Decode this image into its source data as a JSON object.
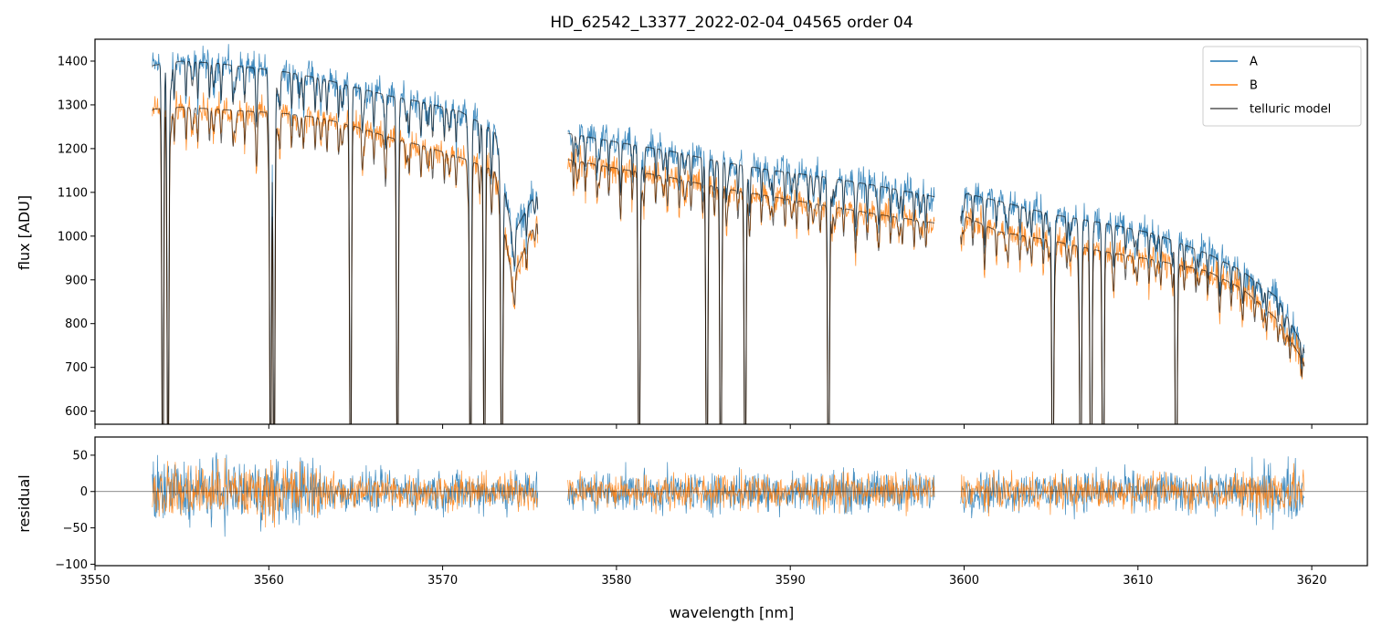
{
  "chart_data": [
    {
      "type": "line",
      "title": "HD_62542_L3377_2022-02-04_04565  order 04",
      "xlabel": "",
      "ylabel": "flux [ADU]",
      "xlim": [
        3550.0,
        3623.2
      ],
      "ylim": [
        570,
        1450
      ],
      "y_ticks": [
        600,
        700,
        800,
        900,
        1000,
        1100,
        1200,
        1300,
        1400
      ],
      "x_ticks": [
        3550,
        3560,
        3570,
        3580,
        3590,
        3600,
        3610,
        3620
      ],
      "legend_position": "upper right",
      "legend": [
        "A",
        "B",
        "telluric model"
      ],
      "segments": [
        [
          3553.3,
          3575.5
        ],
        [
          3577.2,
          3598.3
        ],
        [
          3599.8,
          3619.6
        ]
      ],
      "series": [
        {
          "name": "A",
          "color": "#1f77b4",
          "x": [
            3553.3,
            3555,
            3557,
            3559,
            3561,
            3563,
            3565,
            3567,
            3569,
            3571,
            3573,
            3574,
            3575.5,
            3577.2,
            3580,
            3583,
            3586,
            3589,
            3592,
            3595,
            3598.3,
            3599.8,
            3602,
            3605,
            3608,
            3611,
            3614,
            3616,
            3618,
            3619.6
          ],
          "y": [
            1390,
            1400,
            1395,
            1385,
            1375,
            1360,
            1340,
            1320,
            1305,
            1285,
            1240,
            1000,
            1110,
            1235,
            1215,
            1195,
            1170,
            1150,
            1135,
            1115,
            1090,
            1100,
            1080,
            1050,
            1030,
            1005,
            960,
            920,
            860,
            740
          ]
        },
        {
          "name": "B",
          "color": "#ff7f0e",
          "x": [
            3553.3,
            3555,
            3557,
            3559,
            3561,
            3563,
            3565,
            3567,
            3569,
            3571,
            3573,
            3574,
            3575.5,
            3577.2,
            3580,
            3583,
            3586,
            3589,
            3592,
            3595,
            3598.3,
            3599.8,
            3602,
            3605,
            3608,
            3611,
            3614,
            3616,
            3618,
            3619.6
          ],
          "y": [
            1290,
            1295,
            1290,
            1285,
            1280,
            1270,
            1250,
            1225,
            1205,
            1180,
            1150,
            900,
            1050,
            1175,
            1155,
            1135,
            1110,
            1090,
            1070,
            1050,
            1030,
            1050,
            1010,
            990,
            965,
            945,
            920,
            880,
            810,
            710
          ]
        },
        {
          "name": "telluric model",
          "color": "#555555",
          "note_lines_nm": [
            3553.9,
            3554.2,
            3560.1,
            3560.3,
            3564.7,
            3567.4,
            3571.6,
            3572.4,
            3573.4,
            3581.3,
            3585.2,
            3586.0,
            3587.4,
            3592.2,
            3605.1,
            3606.7,
            3607.3,
            3608.0,
            3612.2
          ],
          "y_min": 570
        }
      ]
    },
    {
      "type": "line",
      "title": "",
      "xlabel": "wavelength [nm]",
      "ylabel": "residual",
      "xlim": [
        3550.0,
        3623.2
      ],
      "ylim": [
        -102,
        75
      ],
      "y_ticks": [
        50,
        0,
        -50,
        -100
      ],
      "y_tick_labels": [
        "50",
        "0",
        "−50",
        "−100"
      ],
      "x_ticks": [
        3550,
        3560,
        3570,
        3580,
        3590,
        3600,
        3610,
        3620
      ],
      "zero_line": 0,
      "series": [
        {
          "name": "A",
          "color": "#1f77b4",
          "noise_amplitude": 35
        },
        {
          "name": "B",
          "color": "#ff7f0e",
          "noise_amplitude": 30
        }
      ]
    }
  ]
}
